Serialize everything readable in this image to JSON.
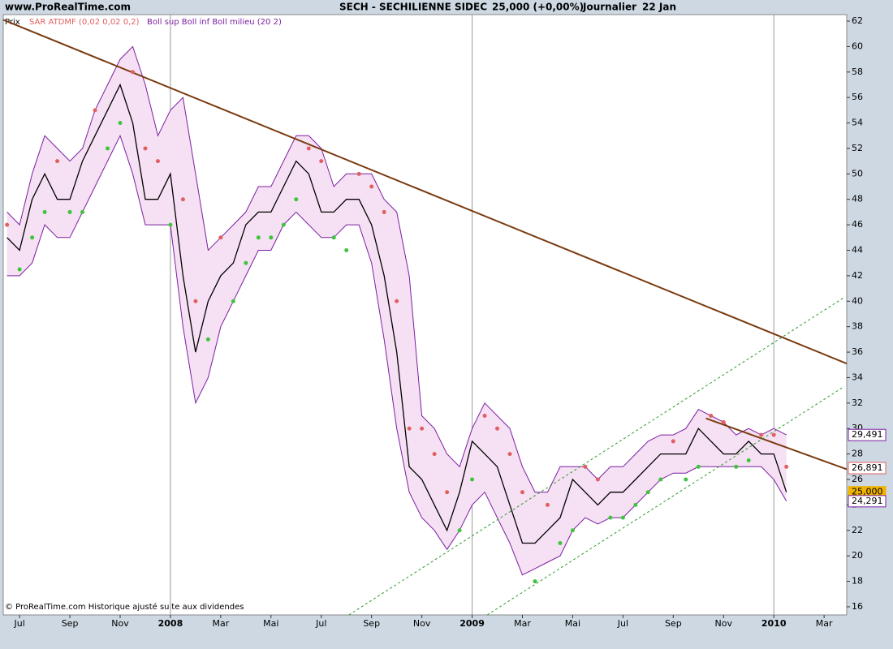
{
  "chart_data": {
    "type": "line",
    "site": "www.ProRealTime.com",
    "title": "SECH - SECHILIENNE SIDEC",
    "quote": "25,000 (+0,00%)",
    "period": "Journalier",
    "date": "22 Jan",
    "footer": "© ProRealTime.com Historique ajusté suite aux dividendes",
    "xlim": [
      -6.65,
      26.9
    ],
    "xticks": [
      {
        "value": -6,
        "label": "Jul"
      },
      {
        "value": -4,
        "label": "Sep"
      },
      {
        "value": -2,
        "label": "Nov"
      },
      {
        "value": 0,
        "label": "2008"
      },
      {
        "value": 2,
        "label": "Mar"
      },
      {
        "value": 4,
        "label": "Mai"
      },
      {
        "value": 6,
        "label": "Jul"
      },
      {
        "value": 8,
        "label": "Sep"
      },
      {
        "value": 10,
        "label": "Nov"
      },
      {
        "value": 12,
        "label": "2009"
      },
      {
        "value": 14,
        "label": "Mar"
      },
      {
        "value": 16,
        "label": "Mai"
      },
      {
        "value": 18,
        "label": "Jul"
      },
      {
        "value": 20,
        "label": "Sep"
      },
      {
        "value": 22,
        "label": "Nov"
      },
      {
        "value": 24,
        "label": "2010"
      },
      {
        "value": 26,
        "label": "Mar"
      }
    ],
    "ylim": [
      15.36,
      62.51
    ],
    "yticks": [
      16,
      18,
      20,
      22,
      24,
      26,
      28,
      30,
      32,
      34,
      36,
      38,
      40,
      42,
      44,
      46,
      48,
      50,
      52,
      54,
      56,
      58,
      60,
      62
    ],
    "grid": false,
    "x": [
      -6.5,
      -6,
      -5.5,
      -5,
      -4.5,
      -4,
      -3.5,
      -3,
      -2.5,
      -2,
      -1.5,
      -1,
      -0.5,
      0,
      0.5,
      1,
      1.5,
      2,
      2.5,
      3,
      3.5,
      4,
      4.5,
      5,
      5.5,
      6,
      6.5,
      7,
      7.5,
      8,
      8.5,
      9,
      9.5,
      10,
      10.5,
      11,
      11.5,
      12,
      12.5,
      13,
      13.5,
      14,
      14.5,
      15,
      15.5,
      16,
      16.5,
      17,
      17.5,
      18,
      18.5,
      19,
      19.5,
      20,
      20.5,
      21,
      21.5,
      22,
      22.5,
      23,
      23.5,
      24,
      24.5
    ],
    "series": [
      {
        "name": "Prix",
        "color": "#000000",
        "values": [
          45,
          44,
          48,
          50,
          48,
          48,
          51,
          53,
          55,
          57,
          54,
          48,
          48,
          50,
          42,
          36,
          40,
          42,
          43,
          46,
          47,
          47,
          49,
          51,
          50,
          47,
          47,
          48,
          48,
          46,
          42,
          36,
          27,
          26,
          24,
          22,
          25,
          29,
          28,
          27,
          24,
          21,
          21,
          22,
          23,
          26,
          25,
          24,
          25,
          25,
          26,
          27,
          28,
          28,
          28,
          30,
          29,
          28,
          28,
          29,
          28,
          28,
          25
        ]
      },
      {
        "name": "SAR ATDMF (0,02 0,02 0,2)",
        "color": "#e06060",
        "color_below": "#3fc43f",
        "values": [
          46,
          42.5,
          45,
          47,
          51,
          47,
          47,
          55,
          52,
          54,
          58,
          52,
          51,
          46,
          48,
          40,
          37,
          45,
          40,
          43,
          45,
          45,
          46,
          48,
          52,
          51,
          45,
          44,
          50,
          49,
          47,
          40,
          30,
          30,
          28,
          25,
          22,
          26,
          31,
          30,
          28,
          25,
          18,
          24,
          21,
          22,
          27,
          26,
          23,
          23,
          24,
          25,
          26,
          29,
          26,
          27,
          31,
          30.5,
          27,
          27.5,
          29.5,
          29.5,
          27
        ]
      },
      {
        "name": "Boll sup Boll inf Boll milieu (20 2)",
        "color": "#7b1fa2",
        "fill": "#f6e0f3",
        "upper": [
          47,
          46,
          50,
          53,
          52,
          51,
          52,
          55,
          57,
          59,
          60,
          57,
          53,
          55,
          56,
          50,
          44,
          45,
          46,
          47,
          49,
          49,
          51,
          53,
          53,
          52,
          49,
          50,
          50,
          50,
          48,
          47,
          42,
          31,
          30,
          28,
          27,
          30,
          32,
          31,
          30,
          27,
          25,
          25,
          27,
          27,
          27,
          26,
          27,
          27,
          28,
          29,
          29.5,
          29.5,
          30,
          31.5,
          31,
          30.5,
          29.5,
          30,
          29.5,
          30,
          29.5
        ],
        "lower": [
          42,
          42,
          43,
          46,
          45,
          45,
          47,
          49,
          51,
          53,
          50,
          46,
          46,
          46,
          38,
          32,
          34,
          38,
          40,
          42,
          44,
          44,
          46,
          47,
          46,
          45,
          45,
          46,
          46,
          43,
          37,
          30,
          25,
          23,
          22,
          20.5,
          22,
          24,
          25,
          23,
          21,
          18.5,
          19,
          19.5,
          20,
          22,
          23,
          22.5,
          23,
          23,
          24,
          25,
          26,
          26.5,
          26.5,
          27,
          27,
          27,
          27,
          27,
          27,
          26,
          24.3
        ]
      }
    ],
    "lines": [
      {
        "color": "#7a3b10",
        "x": [
          -6.65,
          26.9
        ],
        "y": [
          62.1,
          35.1
        ]
      },
      {
        "color": "#7a3b10",
        "x": [
          21.3,
          26.9
        ],
        "y": [
          30.8,
          26.8
        ]
      },
      {
        "color": "#2a9a2a",
        "dashed": true,
        "x": [
          7.1,
          26.8
        ],
        "y": [
          15.36,
          40.3
        ]
      },
      {
        "color": "#2a9a2a",
        "dashed": true,
        "x": [
          12.6,
          26.8
        ],
        "y": [
          15.36,
          33.3
        ]
      }
    ],
    "last_labels": [
      {
        "value": 29.491,
        "label": "29,491",
        "color": "#7b1fa2"
      },
      {
        "value": 26.891,
        "label": "26,891",
        "color": "#e06060"
      },
      {
        "value": 25,
        "label": "25,000",
        "color": "#f0b400",
        "filled": true
      },
      {
        "value": 24.291,
        "label": "24,291",
        "color": "#7b1fa2"
      }
    ]
  }
}
